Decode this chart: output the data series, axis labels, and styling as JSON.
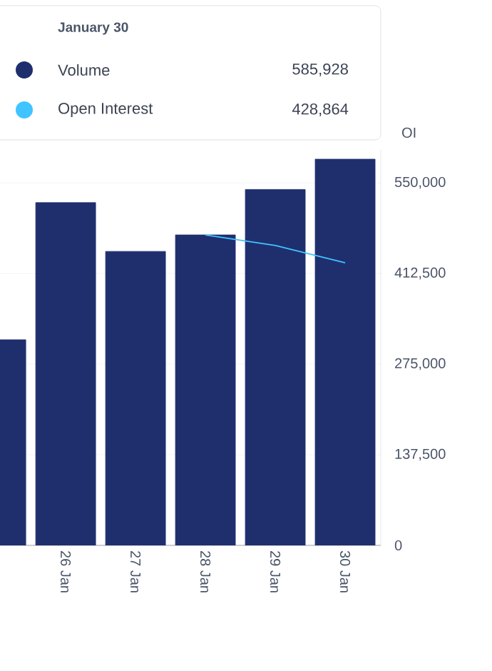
{
  "chart_data": {
    "type": "bar",
    "ylabel": "OI",
    "legend_title": "January 30",
    "categories": [
      null,
      "26 Jan",
      "27 Jan",
      "28 Jan",
      "29 Jan",
      "30 Jan"
    ],
    "series": [
      {
        "name": "Volume",
        "color": "#1f2f6e",
        "values": [
          312000,
          520000,
          446000,
          471000,
          540000,
          585928
        ]
      },
      {
        "name": "Open Interest",
        "type": "line",
        "color": "#40c4ff",
        "values": [
          null,
          null,
          null,
          471000,
          455000,
          428864
        ]
      }
    ],
    "annotations": [
      "585,928",
      "428,864"
    ],
    "ylim": [
      0,
      600000
    ],
    "yticks": [
      0,
      {
        "value": 137500,
        "label": "137,500"
      },
      {
        "value": 275000,
        "label": "275,000"
      },
      {
        "value": 412500,
        "label": "412,500"
      },
      {
        "value": 550000,
        "label": "550,000"
      }
    ],
    "grid": "y",
    "legend": "top left",
    "marker": "none",
    "line_style": "solid"
  }
}
